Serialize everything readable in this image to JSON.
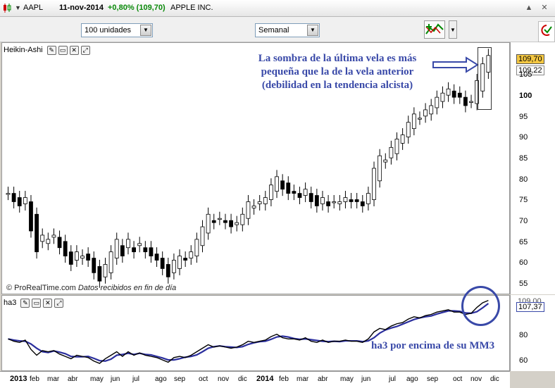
{
  "titlebar": {
    "symbol": "AAPL",
    "date": "11-nov-2014",
    "change": "+0,80% (109,70)",
    "name": "APPLE INC.",
    "buttons": [
      "▲",
      "✕"
    ]
  },
  "toolbar": {
    "units_select": "100 unidades",
    "period_select": "Semanal"
  },
  "main_panel": {
    "title": "Heikin-Ashi",
    "price_ticks": [
      "105",
      "100",
      "95",
      "90",
      "85",
      "80",
      "75",
      "70",
      "65",
      "60",
      "55"
    ],
    "last_price": "109,70",
    "second_price": "109,22",
    "footer_brand": "© ProRealTime.com",
    "footer_italic": "Datos recibidos en fin de día",
    "annotation": [
      "La sombra de la última vela es más",
      "pequeña que la de la vela anterior",
      "(debilidad en la tendencia alcista)"
    ]
  },
  "indicator_panel": {
    "title": "ha3",
    "ticks": [
      "80",
      "60"
    ],
    "value_top": "109,00",
    "value_box": "107,37",
    "annotation": "ha3 por encima de su MM3"
  },
  "axis": {
    "labels": [
      "2013",
      "feb",
      "mar",
      "abr",
      "may",
      "jun",
      "jul",
      "ago",
      "sep",
      "oct",
      "nov",
      "dic",
      "2014",
      "feb",
      "mar",
      "abr",
      "may",
      "jun",
      "jul",
      "ago",
      "sep",
      "oct",
      "nov",
      "dic"
    ]
  },
  "colors": {
    "annotation": "#3949a8",
    "up_candle": "#ffffff",
    "down_candle": "#000000",
    "ind_line": "#000000",
    "ma_line": "#2b2f9e",
    "change_green": "#0a8a0a"
  },
  "chart_data": {
    "type": "candlestick",
    "timeframe": "weekly",
    "y_range": [
      53,
      113
    ],
    "closes": [
      77,
      75,
      74,
      76,
      68,
      63,
      67,
      66,
      67,
      64,
      62,
      60,
      63,
      62,
      61,
      58,
      56,
      60,
      63,
      66,
      62,
      66,
      63,
      65,
      63,
      62,
      61,
      59,
      57,
      61,
      62,
      61,
      63,
      66,
      69,
      72,
      70,
      71,
      70,
      69,
      70,
      72,
      75,
      74,
      75,
      76,
      79,
      81,
      78,
      77,
      77,
      76,
      78,
      75,
      74,
      76,
      74,
      75,
      75,
      76,
      75,
      75,
      74,
      77,
      83,
      86,
      85,
      88,
      90,
      91,
      94,
      96,
      95,
      97,
      98,
      100,
      101,
      102,
      100,
      100,
      98,
      99,
      104,
      108,
      110
    ]
  }
}
